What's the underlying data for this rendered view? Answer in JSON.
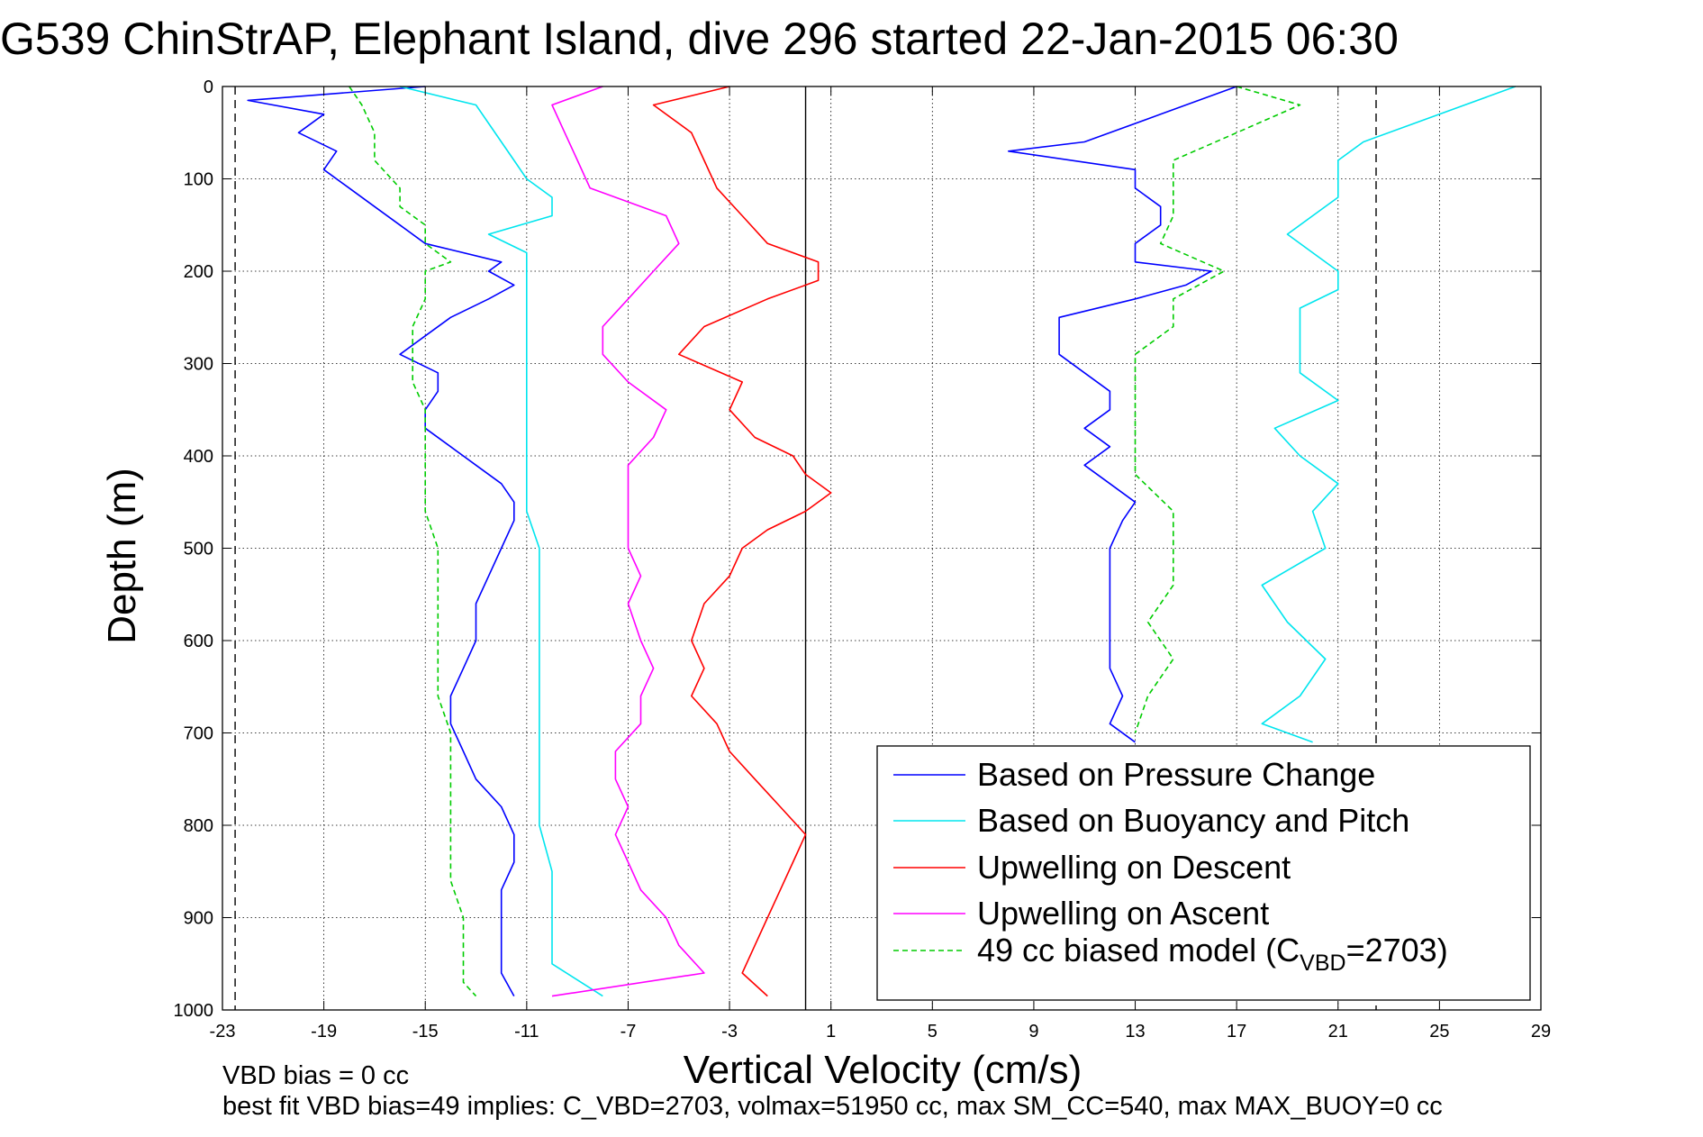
{
  "chart_data": {
    "type": "line",
    "title": "G539 ChinStrAP, Elephant Island, dive 296 started 22-Jan-2015 06:30",
    "xlabel": "Vertical Velocity (cm/s)",
    "ylabel": "Depth (m)",
    "xlim": [
      -23,
      29
    ],
    "ylim": [
      1000,
      0
    ],
    "y_reversed": true,
    "grid": true,
    "grid_style": "dotted",
    "xticks": [
      "-23",
      "-19",
      "-15",
      "-11",
      "-7",
      "-3",
      "1",
      "5",
      "9",
      "13",
      "17",
      "21",
      "25",
      "29"
    ],
    "yticks": [
      "0",
      "100",
      "200",
      "300",
      "400",
      "500",
      "600",
      "700",
      "800",
      "900",
      "1000"
    ],
    "legend_position": "bottom-right",
    "vertical_reference_lines": [
      {
        "x": 0,
        "style": "solid",
        "color": "#000000"
      },
      {
        "x": -22.5,
        "style": "dashed",
        "color": "#000000"
      },
      {
        "x": 22.5,
        "style": "dashed",
        "color": "#000000"
      }
    ],
    "series": [
      {
        "name": "Based on Pressure Change",
        "color": "#0000ff",
        "style": "solid",
        "depth": [
          0,
          15,
          30,
          50,
          70,
          90,
          110,
          130,
          150,
          170,
          190,
          200,
          215,
          230,
          250,
          270,
          290,
          310,
          330,
          350,
          370,
          390,
          410,
          430,
          450,
          470,
          500,
          530,
          560,
          600,
          630,
          660,
          690,
          720,
          750,
          780,
          810,
          840,
          870,
          900,
          930,
          960,
          985,
          0,
          30,
          60,
          70,
          90,
          110,
          130,
          150,
          170,
          190,
          200,
          215,
          230,
          250,
          270,
          290,
          310,
          330,
          350,
          370,
          390,
          410,
          430,
          450,
          470,
          500,
          530,
          560,
          600,
          630,
          660,
          690,
          710
        ],
        "values": [
          -15,
          -22,
          -19,
          -20,
          -18.5,
          -19,
          -18,
          -17,
          -16,
          -15,
          -12,
          -12.5,
          -11.5,
          -12.5,
          -14,
          -15,
          -16,
          -14.5,
          -14.5,
          -15,
          -15,
          -14,
          -13,
          -12,
          -11.5,
          -11.5,
          -12,
          -12.5,
          -13,
          -13,
          -13.5,
          -14,
          -14,
          -13.5,
          -13,
          -12,
          -11.5,
          -11.5,
          -12,
          -12,
          -12,
          -12,
          -11.5,
          17,
          14,
          11,
          8,
          13,
          13,
          14,
          14,
          13,
          13,
          16,
          15,
          13,
          10,
          10,
          10,
          11,
          12,
          12,
          11,
          12,
          11,
          12,
          13,
          12.5,
          12,
          12,
          12,
          12,
          12,
          12.5,
          12,
          13
        ]
      },
      {
        "name": "Based on Buoyancy and Pitch",
        "color": "#00e5ee",
        "style": "solid",
        "depth": [
          0,
          20,
          40,
          60,
          80,
          100,
          120,
          140,
          160,
          180,
          200,
          220,
          240,
          280,
          310,
          340,
          380,
          420,
          460,
          500,
          540,
          580,
          620,
          660,
          700,
          750,
          800,
          850,
          900,
          950,
          985,
          0,
          20,
          40,
          60,
          80,
          100,
          120,
          140,
          160,
          180,
          200,
          220,
          240,
          280,
          310,
          340,
          370,
          400,
          430,
          460,
          500,
          540,
          580,
          620,
          660,
          690,
          710
        ],
        "values": [
          -16,
          -13,
          -12.5,
          -12,
          -11.5,
          -11,
          -10,
          -10,
          -12.5,
          -11,
          -11,
          -11,
          -11,
          -11,
          -11,
          -11,
          -11,
          -11,
          -11,
          -10.5,
          -10.5,
          -10.5,
          -10.5,
          -10.5,
          -10.5,
          -10.5,
          -10.5,
          -10,
          -10,
          -10,
          -8,
          28,
          26,
          24,
          22,
          21,
          21,
          21,
          20,
          19,
          20,
          21,
          21,
          19.5,
          19.5,
          19.5,
          21,
          18.5,
          19.5,
          21,
          20,
          20.5,
          18,
          19,
          20.5,
          19.5,
          18,
          20
        ]
      },
      {
        "name": "Upwelling on Descent",
        "color": "#ff0000",
        "style": "solid",
        "depth": [
          0,
          20,
          50,
          80,
          110,
          140,
          170,
          190,
          210,
          230,
          260,
          290,
          320,
          350,
          380,
          400,
          420,
          440,
          460,
          480,
          500,
          530,
          560,
          600,
          630,
          660,
          690,
          720,
          750,
          780,
          810,
          840,
          870,
          900,
          930,
          960,
          985
        ],
        "values": [
          -3,
          -6,
          -4.5,
          -4,
          -3.5,
          -2.5,
          -1.5,
          0.5,
          0.5,
          -1.5,
          -4,
          -5,
          -2.5,
          -3,
          -2,
          -0.5,
          0,
          1,
          0,
          -1.5,
          -2.5,
          -3,
          -4,
          -4.5,
          -4,
          -4.5,
          -3.5,
          -3,
          -2,
          -1,
          0,
          -0.5,
          -1,
          -1.5,
          -2,
          -2.5,
          -1.5
        ]
      },
      {
        "name": "Upwelling on Ascent",
        "color": "#ff00ff",
        "style": "solid",
        "depth": [
          0,
          20,
          50,
          80,
          110,
          140,
          170,
          200,
          230,
          260,
          290,
          320,
          350,
          380,
          410,
          440,
          470,
          500,
          530,
          560,
          600,
          630,
          660,
          690,
          720,
          750,
          780,
          810,
          840,
          870,
          900,
          930,
          960,
          985
        ],
        "values": [
          -8,
          -10,
          -9.5,
          -9,
          -8.5,
          -5.5,
          -5,
          -6,
          -7,
          -8,
          -8,
          -7,
          -5.5,
          -6,
          -7,
          -7,
          -7,
          -7,
          -6.5,
          -7,
          -6.5,
          -6,
          -6.5,
          -6.5,
          -7.5,
          -7.5,
          -7,
          -7.5,
          -7,
          -6.5,
          -5.5,
          -5,
          -4,
          -10
        ]
      },
      {
        "name": "49 cc biased model (C",
        "color": "#00cc00",
        "style": "dashed",
        "depth": [
          0,
          20,
          50,
          80,
          110,
          130,
          150,
          170,
          190,
          200,
          230,
          260,
          290,
          320,
          350,
          380,
          420,
          460,
          500,
          540,
          580,
          620,
          660,
          700,
          740,
          780,
          820,
          860,
          900,
          940,
          970,
          985,
          0,
          20,
          50,
          80,
          110,
          140,
          170,
          200,
          230,
          260,
          290,
          320,
          350,
          380,
          420,
          460,
          500,
          540,
          580,
          620,
          660,
          700
        ],
        "values": [
          -18,
          -17.5,
          -17,
          -17,
          -16,
          -16,
          -15,
          -15,
          -14,
          -15,
          -15,
          -15.5,
          -15.5,
          -15.5,
          -15,
          -15,
          -15,
          -15,
          -14.5,
          -14.5,
          -14.5,
          -14.5,
          -14.5,
          -14,
          -14,
          -14,
          -14,
          -14,
          -13.5,
          -13.5,
          -13.5,
          -13,
          17,
          19.5,
          17,
          14.5,
          14.5,
          14.5,
          14,
          16.5,
          14.5,
          14.5,
          13,
          13,
          13,
          13,
          13,
          14.5,
          14.5,
          14.5,
          13.5,
          14.5,
          13.5,
          13
        ]
      }
    ],
    "legend_subscript": "VBD",
    "legend_suffix": "=2703)"
  },
  "footer": {
    "line1": "VBD bias = 0 cc",
    "line2": "best fit VBD bias=49 implies: C_VBD=2703, volmax=51950 cc, max SM_CC=540, max MAX_BUOY=0 cc"
  }
}
